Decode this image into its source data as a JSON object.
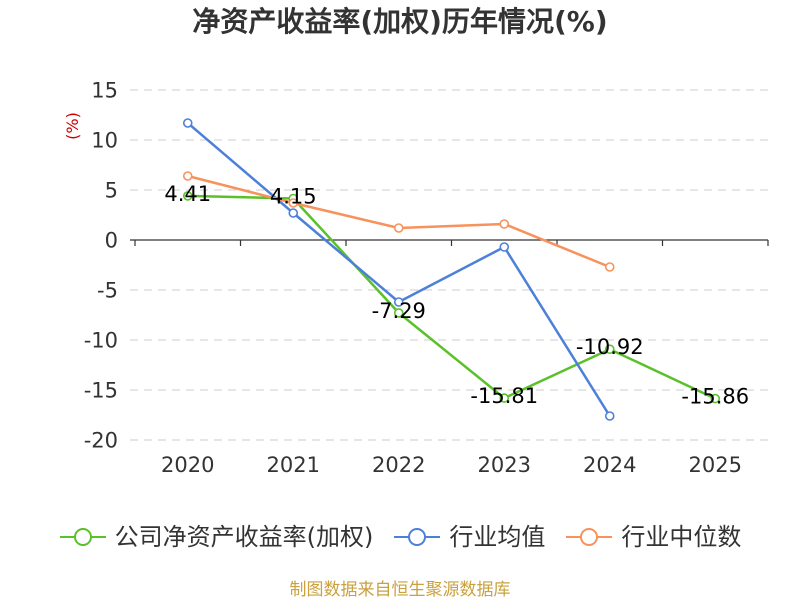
{
  "chart_data": {
    "type": "line",
    "title": "净资产收益率(加权)历年情况(%)",
    "xlabel": "",
    "ylabel": "(%)",
    "categories": [
      "2020",
      "2021",
      "2022",
      "2023",
      "2024",
      "2025"
    ],
    "ylim": [
      -20,
      15
    ],
    "yticks": [
      15,
      10,
      5,
      0,
      -5,
      -10,
      -15,
      -20
    ],
    "grid": true,
    "series": [
      {
        "name": "公司净资产收益率(加权)",
        "color": "#5bc12b",
        "values": [
          4.41,
          4.15,
          -7.29,
          -15.81,
          -10.92,
          -15.86
        ],
        "data_labels": [
          "4.41",
          "4.15",
          "-7.29",
          "-15.81",
          "-10.92",
          "-15.86"
        ]
      },
      {
        "name": "行业均值",
        "color": "#4d80d9",
        "values": [
          11.7,
          2.7,
          -6.2,
          -0.7,
          -17.6,
          null
        ]
      },
      {
        "name": "行业中位数",
        "color": "#f8925c",
        "values": [
          6.4,
          3.7,
          1.2,
          1.6,
          -2.7,
          null
        ]
      }
    ]
  },
  "footer": {
    "source": "制图数据来自恒生聚源数据库"
  },
  "colors": {
    "ylabel": "#cc0000",
    "footer": "#c9a13f",
    "axis": "#333333",
    "grid": "#cccccc",
    "text": "#333333",
    "data_label": "#000000"
  }
}
